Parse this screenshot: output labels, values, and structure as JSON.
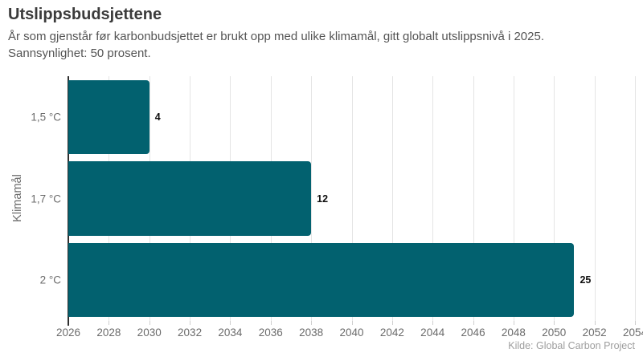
{
  "header": {
    "title": "Utslippsbudsjettene",
    "subtitle_line1": "År som gjenstår før karbonbudsjettet er brukt opp med ulike klimamål, gitt globalt utslippsnivå i 2025.",
    "subtitle_line2": "Sannsynlighet: 50 prosent."
  },
  "chart_data": {
    "type": "bar",
    "orientation": "horizontal",
    "title": "Utslippsbudsjettene",
    "subtitle": "År som gjenstår før karbonbudsjettet er brukt opp med ulike klimamål, gitt globalt utslippsnivå i 2025. Sannsynlighet: 50 prosent.",
    "categories": [
      "1,5 °C",
      "1,7 °C",
      "2 °C"
    ],
    "values": [
      4,
      12,
      25
    ],
    "value_labels": [
      "4",
      "12",
      "25"
    ],
    "xlabel": "",
    "ylabel": "Klimamål",
    "xlim": [
      2026,
      2054
    ],
    "x_ticks": [
      2026,
      2028,
      2030,
      2032,
      2034,
      2036,
      2038,
      2040,
      2042,
      2044,
      2046,
      2048,
      2050,
      2052,
      2054
    ],
    "grid": true,
    "legend": false,
    "bar_color": "#02616F"
  },
  "footer": {
    "source": "Kilde: Global Carbon Project"
  }
}
